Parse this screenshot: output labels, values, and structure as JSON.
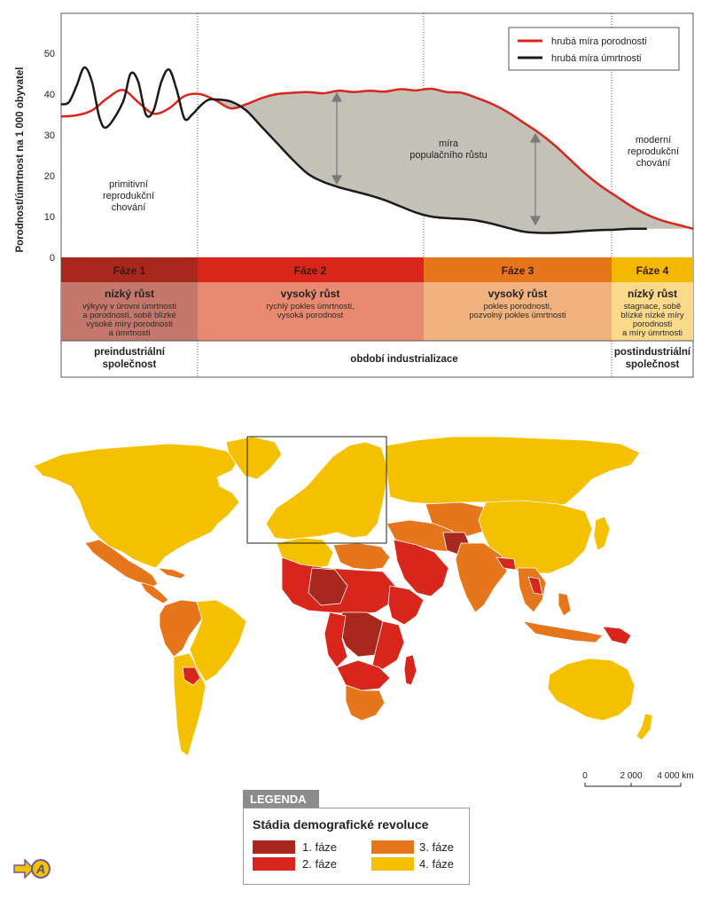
{
  "chart_data": {
    "type": "line",
    "ylabel": "Porodnost/úmrtnost na 1 000 obyvatel",
    "ylim": [
      0,
      55
    ],
    "yticks": [
      0,
      10,
      20,
      30,
      40,
      50
    ],
    "grid": false,
    "legend_position": "top-right",
    "series": [
      {
        "name": "hrubá míra porodnosti",
        "color": "#d9261c",
        "points": [
          [
            0,
            34.5
          ],
          [
            2,
            34.8
          ],
          [
            4,
            36
          ],
          [
            6,
            39
          ],
          [
            8,
            41
          ],
          [
            10,
            38
          ],
          [
            12,
            35.2
          ],
          [
            14,
            36.5
          ],
          [
            16,
            39.5
          ],
          [
            18,
            40
          ],
          [
            20,
            38.5
          ],
          [
            22,
            36.5
          ],
          [
            24,
            37.5
          ],
          [
            26,
            39
          ],
          [
            28,
            40
          ],
          [
            30,
            40.3
          ],
          [
            32,
            40.5
          ],
          [
            34,
            40.2
          ],
          [
            36,
            40.8
          ],
          [
            38,
            40.5
          ],
          [
            40,
            40.8
          ],
          [
            42,
            40.6
          ],
          [
            44,
            41.2
          ],
          [
            46,
            40.9
          ],
          [
            48,
            41.3
          ],
          [
            50,
            40.5
          ],
          [
            52,
            40.3
          ],
          [
            54,
            39
          ],
          [
            56,
            37.5
          ],
          [
            58,
            35.5
          ],
          [
            60,
            33
          ],
          [
            62,
            30.5
          ],
          [
            64,
            27.5
          ],
          [
            66,
            24
          ],
          [
            68,
            20.5
          ],
          [
            70,
            17.5
          ],
          [
            72,
            15
          ],
          [
            74,
            12.5
          ],
          [
            76,
            10.5
          ],
          [
            78,
            9
          ],
          [
            80,
            8
          ],
          [
            82,
            7
          ]
        ]
      },
      {
        "name": "hrubá míra úmrtnosti",
        "color": "#1a1a1a",
        "points": [
          [
            0,
            37.5
          ],
          [
            1,
            38
          ],
          [
            2,
            42
          ],
          [
            3,
            46.5
          ],
          [
            4,
            43
          ],
          [
            5,
            34
          ],
          [
            6,
            32
          ],
          [
            8,
            38
          ],
          [
            9,
            45
          ],
          [
            10,
            43
          ],
          [
            11,
            35
          ],
          [
            12,
            36
          ],
          [
            13,
            43
          ],
          [
            14,
            46
          ],
          [
            15,
            41
          ],
          [
            16,
            34
          ],
          [
            17,
            35
          ],
          [
            18,
            37
          ],
          [
            19,
            38.5
          ],
          [
            20,
            38.7
          ],
          [
            22,
            38.2
          ],
          [
            24,
            36
          ],
          [
            26,
            32
          ],
          [
            28,
            28
          ],
          [
            30,
            24
          ],
          [
            32,
            20.5
          ],
          [
            34,
            18.5
          ],
          [
            36,
            17.2
          ],
          [
            38,
            16.2
          ],
          [
            40,
            15.2
          ],
          [
            42,
            14
          ],
          [
            44,
            12.5
          ],
          [
            46,
            11
          ],
          [
            48,
            10
          ],
          [
            50,
            9.6
          ],
          [
            52,
            9.4
          ],
          [
            54,
            9
          ],
          [
            56,
            8.2
          ],
          [
            58,
            7.2
          ],
          [
            60,
            6.3
          ],
          [
            62,
            6
          ],
          [
            64,
            6
          ],
          [
            66,
            6.2
          ],
          [
            68,
            6.5
          ],
          [
            70,
            6.7
          ],
          [
            72,
            6.8
          ],
          [
            74,
            7
          ],
          [
            76,
            7
          ]
        ]
      }
    ],
    "annotations": {
      "primitive": [
        "primitivní",
        "reprodukční",
        "chování"
      ],
      "growth": [
        "míra",
        "populačního růstu"
      ],
      "modern": [
        "moderní",
        "reprodukční",
        "chování"
      ]
    }
  },
  "phases": [
    {
      "label": "Fáze 1",
      "head_color": "#a8281e",
      "body_color": "#c4776a",
      "title": "nízký růst",
      "desc": [
        "výkyvy v úrovni úmrtnosti",
        "a porodnosti, sobě blízké",
        "vysoké míry porodnosti",
        "a úmrtnosti"
      ]
    },
    {
      "label": "Fáze 2",
      "head_color": "#d9261c",
      "body_color": "#e88a72",
      "title": "vysoký růst",
      "desc": [
        "rychlý pokles úmrtnosti,",
        "vysoká porodnost"
      ]
    },
    {
      "label": "Fáze 3",
      "head_color": "#e6761b",
      "body_color": "#f0b27e",
      "title": "vysoký růst",
      "desc": [
        "pokles porodnosti,",
        "pozvolný pokles úmrtnosti"
      ]
    },
    {
      "label": "Fáze 4",
      "head_color": "#f5b800",
      "body_color": "#fad98a",
      "title": "nízký růst",
      "desc": [
        "stagnace, sobě",
        "blízké nízké míry",
        "porodnosti",
        "a míry úmrtnosti"
      ]
    }
  ],
  "eras": [
    [
      "preindustriální",
      "společnost"
    ],
    [
      "období industrializace"
    ],
    [
      "postindustriální",
      "společnost"
    ]
  ],
  "map": {
    "colors": {
      "faze1": "#a8281e",
      "faze2": "#d9261c",
      "faze3": "#e6761b",
      "faze4": "#f5c000"
    },
    "scale": {
      "labels": [
        "0",
        "2 000",
        "4 000 km"
      ]
    }
  },
  "legend": {
    "tab": "LEGENDA",
    "title": "Stádia demografické revoluce",
    "items": [
      {
        "label": "1. fáze",
        "color": "#a8281e"
      },
      {
        "label": "2. fáze",
        "color": "#d9261c"
      },
      {
        "label": "3. fáze",
        "color": "#e6761b"
      },
      {
        "label": "4. fáze",
        "color": "#f5c000"
      }
    ]
  },
  "badge": "A"
}
